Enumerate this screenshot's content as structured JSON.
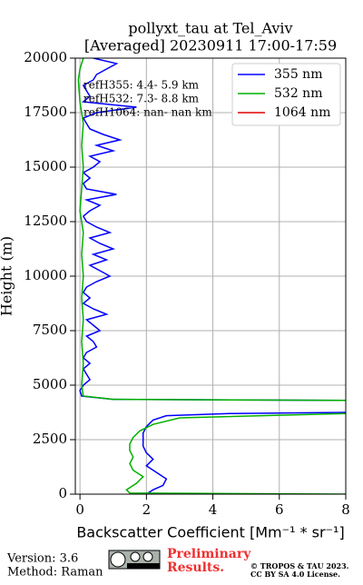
{
  "chart_data": {
    "type": "profile",
    "title": "pollyxt_tau at Tel_Aviv",
    "subtitle": "[Averaged] 20230911 17:00-17:59",
    "xlabel": "Backscatter Coefficient [Mm⁻¹ * sr⁻¹]",
    "ylabel": "Height (m)",
    "xlim": [
      -0.14,
      8
    ],
    "xticks": [
      0,
      2,
      4,
      6,
      8
    ],
    "ylim": [
      0,
      20000
    ],
    "yticks": [
      0,
      2500,
      5000,
      7500,
      10000,
      12500,
      15000,
      17500,
      20000
    ],
    "grid": true,
    "legend": "upper right",
    "annotations": [
      "refH355:  4.4- 5.9 km",
      "refH532:  7.3- 8.8 km",
      "refH1064:  nan- nan km"
    ],
    "series": [
      {
        "name": "355 nm",
        "color": "#0000ff",
        "heights": [
          0,
          200,
          400,
          700,
          1000,
          1300,
          1600,
          1900,
          2200,
          2500,
          2800,
          3100,
          3400,
          3600,
          3700,
          3750,
          3800,
          4300,
          4350,
          4500,
          4750,
          5000,
          5250,
          5500,
          5750,
          6000,
          6250,
          6500,
          6750,
          7000,
          7250,
          7500,
          7750,
          8000,
          8250,
          8500,
          8750,
          9000,
          9250,
          9500,
          9750,
          10000,
          10250,
          10500,
          10750,
          11000,
          11250,
          11500,
          11750,
          12000,
          12250,
          12500,
          12750,
          13000,
          13250,
          13500,
          13750,
          14000,
          14250,
          14500,
          14750,
          15000,
          15250,
          15500,
          15750,
          16000,
          16250,
          16500,
          16750,
          17000,
          17250,
          17500,
          17750,
          18000,
          18250,
          18500,
          18750,
          19000,
          19250,
          19500,
          19750,
          20000
        ],
        "values": [
          2.0,
          2.2,
          2.5,
          2.6,
          2.3,
          2.0,
          2.2,
          2.0,
          1.9,
          1.9,
          1.9,
          2.0,
          2.2,
          2.6,
          4.5,
          8,
          null,
          8,
          1.0,
          0.05,
          0.0,
          0.1,
          0.3,
          0.2,
          0.1,
          0.3,
          0.1,
          0.2,
          0.5,
          0.4,
          0.2,
          0.6,
          0.4,
          0.2,
          0.8,
          0.4,
          0.1,
          0.3,
          0.1,
          0.2,
          0.5,
          0.9,
          0.6,
          0.3,
          0.8,
          0.4,
          1.0,
          0.6,
          0.3,
          0.9,
          0.5,
          0.2,
          0.1,
          0.3,
          0.6,
          0.2,
          1.1,
          0.2,
          0.1,
          0.3,
          0.1,
          0.4,
          0.6,
          0.3,
          1.0,
          0.5,
          1.2,
          0.7,
          0.3,
          0.2,
          0.1,
          0.5,
          1.7,
          0.1,
          0.3,
          0.2,
          0.1,
          0.4,
          0.5,
          0.8,
          1.1,
          0.4
        ]
      },
      {
        "name": "532 nm",
        "color": "#00b000",
        "heights": [
          0,
          50,
          200,
          500,
          800,
          1100,
          1400,
          1700,
          2000,
          2300,
          2600,
          2900,
          3200,
          3500,
          3700,
          3800,
          4300,
          4350,
          4500,
          5000,
          6000,
          7000,
          8000,
          9000,
          10000,
          11000,
          12000,
          13000,
          14000,
          15000,
          16000,
          17000,
          18000,
          19000,
          19500,
          20000
        ],
        "values": [
          8,
          1.5,
          1.4,
          1.7,
          1.9,
          1.6,
          1.5,
          1.6,
          1.5,
          1.5,
          1.6,
          1.8,
          2.2,
          3,
          8,
          null,
          8,
          1,
          0.1,
          0.05,
          0.1,
          0.05,
          0.1,
          0.05,
          0.1,
          0.05,
          0.1,
          0.0,
          0.05,
          0.1,
          0.05,
          0.1,
          0.0,
          -0.05,
          0.0,
          0.1
        ]
      },
      {
        "name": "1064 nm",
        "color": "#e00000",
        "heights": [],
        "values": []
      }
    ]
  },
  "footer": {
    "version": "Version: 3.6",
    "method": "Method: Raman",
    "preliminary": "Preliminary",
    "results": "Results.",
    "copyright": "© TROPOS & TAU 2023.",
    "license": "CC BY SA 4.0 License."
  }
}
